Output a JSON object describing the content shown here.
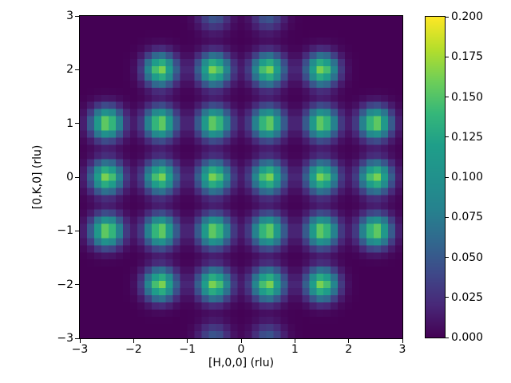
{
  "chart_data": {
    "type": "heatmap",
    "title": "",
    "xlabel": "[H,0,0] (rlu)",
    "ylabel": "[0,K,0] (rlu)",
    "xlim": [
      -3,
      3
    ],
    "ylim": [
      -3,
      3
    ],
    "grid_n": 45,
    "x_ticks": {
      "values": [
        -3,
        -2,
        -1,
        0,
        1,
        2,
        3
      ],
      "labels": [
        "−3",
        "−2",
        "−1",
        "0",
        "1",
        "2",
        "3"
      ]
    },
    "y_ticks": {
      "values": [
        -3,
        -2,
        -1,
        0,
        1,
        2,
        3
      ],
      "labels": [
        "−3",
        "−2",
        "−1",
        "0",
        "1",
        "2",
        "3"
      ]
    },
    "colormap": {
      "name": "viridis",
      "stops": [
        "#440154",
        "#482878",
        "#3e4989",
        "#31688e",
        "#26828e",
        "#21918c",
        "#1f9e89",
        "#35b779",
        "#6ece58",
        "#b5de2b",
        "#fde725"
      ]
    },
    "colorbar": {
      "vmin": 0.0,
      "vmax": 0.2,
      "tick_values": [
        0.0,
        0.025,
        0.05,
        0.075,
        0.1,
        0.125,
        0.15,
        0.175,
        0.2
      ],
      "tick_labels": [
        "0.000",
        "0.025",
        "0.050",
        "0.075",
        "0.100",
        "0.125",
        "0.150",
        "0.175",
        "0.200"
      ]
    },
    "peaks": {
      "sigma": 0.2,
      "main_amplitude": 0.165,
      "weak_amplitude": 0.05,
      "main": [
        [
          -1.5,
          2
        ],
        [
          -0.5,
          2
        ],
        [
          0.5,
          2
        ],
        [
          1.5,
          2
        ],
        [
          -2.5,
          1
        ],
        [
          -1.5,
          1
        ],
        [
          -0.5,
          1
        ],
        [
          0.5,
          1
        ],
        [
          1.5,
          1
        ],
        [
          2.5,
          1
        ],
        [
          -2.5,
          0
        ],
        [
          -1.5,
          0
        ],
        [
          -0.5,
          0
        ],
        [
          0.5,
          0
        ],
        [
          1.5,
          0
        ],
        [
          2.5,
          0
        ],
        [
          -2.5,
          -1
        ],
        [
          -1.5,
          -1
        ],
        [
          -0.5,
          -1
        ],
        [
          0.5,
          -1
        ],
        [
          1.5,
          -1
        ],
        [
          2.5,
          -1
        ],
        [
          -1.5,
          -2
        ],
        [
          -0.5,
          -2
        ],
        [
          0.5,
          -2
        ],
        [
          1.5,
          -2
        ]
      ],
      "weak": [
        [
          -0.5,
          3
        ],
        [
          0.5,
          3
        ],
        [
          -0.5,
          -3
        ],
        [
          0.5,
          -3
        ]
      ]
    }
  }
}
